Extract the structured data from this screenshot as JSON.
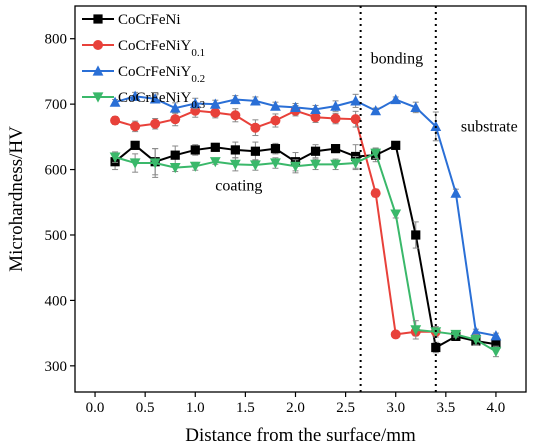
{
  "chart_data": {
    "type": "line",
    "title": "",
    "xlabel": "Distance from the surface/mm",
    "ylabel": "Microhardness/HV",
    "xlim": [
      -0.2,
      4.3
    ],
    "ylim": [
      260,
      850
    ],
    "xticks": [
      0.0,
      0.5,
      1.0,
      1.5,
      2.0,
      2.5,
      3.0,
      3.5,
      4.0
    ],
    "xtick_labels": [
      "0.0",
      "0.5",
      "1.0",
      "1.5",
      "2.0",
      "2.5",
      "3.0",
      "3.5",
      "4.0"
    ],
    "yticks": [
      300,
      400,
      500,
      600,
      700,
      800
    ],
    "ytick_labels": [
      "300",
      "400",
      "500",
      "600",
      "700",
      "800"
    ],
    "grid": false,
    "legend_position": "top-left",
    "vlines": [
      2.65,
      3.4
    ],
    "annotations": [
      {
        "text": "bonding",
        "x": 2.75,
        "y": 762
      },
      {
        "text": "substrate",
        "x": 3.65,
        "y": 658
      },
      {
        "text": "coating",
        "x": 1.2,
        "y": 568
      }
    ],
    "series": [
      {
        "name": "CoCrFeNi",
        "name_base": "CoCrFeNi",
        "name_sub": "",
        "color": "#000000",
        "marker": "square",
        "x": [
          0.2,
          0.4,
          0.6,
          0.8,
          1.0,
          1.2,
          1.4,
          1.6,
          1.8,
          2.0,
          2.2,
          2.4,
          2.6,
          2.8,
          3.0,
          3.2,
          3.4,
          3.6,
          3.8,
          4.0
        ],
        "y": [
          612,
          637,
          612,
          622,
          630,
          634,
          630,
          628,
          632,
          612,
          628,
          632,
          620,
          622,
          637,
          500,
          328,
          345,
          338,
          333
        ],
        "err": [
          12,
          6,
          20,
          14,
          8,
          6,
          12,
          14,
          8,
          14,
          10,
          6,
          18,
          10,
          4,
          20,
          8,
          4,
          6,
          6
        ]
      },
      {
        "name": "CoCrFeNiY0.1",
        "name_base": "CoCrFeNiY",
        "name_sub": "0.1",
        "color": "#e8413a",
        "marker": "circle",
        "x": [
          0.2,
          0.4,
          0.6,
          0.8,
          1.0,
          1.2,
          1.4,
          1.6,
          1.8,
          2.0,
          2.2,
          2.4,
          2.6,
          2.8,
          3.0,
          3.2,
          3.4
        ],
        "y": [
          675,
          666,
          670,
          677,
          690,
          687,
          683,
          664,
          675,
          690,
          680,
          678,
          677,
          564,
          348,
          352,
          352
        ],
        "err": [
          6,
          8,
          8,
          10,
          10,
          8,
          10,
          12,
          10,
          8,
          8,
          8,
          12,
          6,
          4,
          6,
          4
        ]
      },
      {
        "name": "CoCrFeNiY0.2",
        "name_base": "CoCrFeNiY",
        "name_sub": "0.2",
        "color": "#2a6fd6",
        "marker": "triangle-up",
        "x": [
          0.2,
          0.4,
          0.6,
          0.8,
          1.0,
          1.2,
          1.4,
          1.6,
          1.8,
          2.0,
          2.2,
          2.4,
          2.6,
          2.8,
          3.0,
          3.2,
          3.4,
          3.6,
          3.8,
          4.0
        ],
        "y": [
          703,
          712,
          708,
          694,
          701,
          700,
          707,
          705,
          697,
          695,
          692,
          697,
          705,
          690,
          707,
          695,
          666,
          564,
          352,
          346
        ],
        "err": [
          4,
          6,
          6,
          8,
          8,
          6,
          6,
          6,
          6,
          6,
          6,
          8,
          10,
          4,
          4,
          8,
          22,
          6,
          4,
          4
        ]
      },
      {
        "name": "CoCrFeNiY0.3",
        "name_base": "CoCrFeNiY",
        "name_sub": "0.3",
        "color": "#3ab86a",
        "marker": "triangle-down",
        "x": [
          0.2,
          0.4,
          0.6,
          0.8,
          1.0,
          1.2,
          1.4,
          1.6,
          1.8,
          2.0,
          2.2,
          2.4,
          2.6,
          2.8,
          3.0,
          3.2,
          3.4,
          3.6,
          3.8,
          4.0
        ],
        "y": [
          619,
          610,
          610,
          603,
          605,
          612,
          608,
          607,
          610,
          605,
          608,
          608,
          610,
          625,
          532,
          355,
          352,
          348,
          340,
          322
        ],
        "err": [
          8,
          14,
          22,
          6,
          6,
          4,
          10,
          8,
          8,
          10,
          8,
          8,
          10,
          8,
          6,
          14,
          8,
          4,
          8,
          8
        ]
      }
    ]
  }
}
